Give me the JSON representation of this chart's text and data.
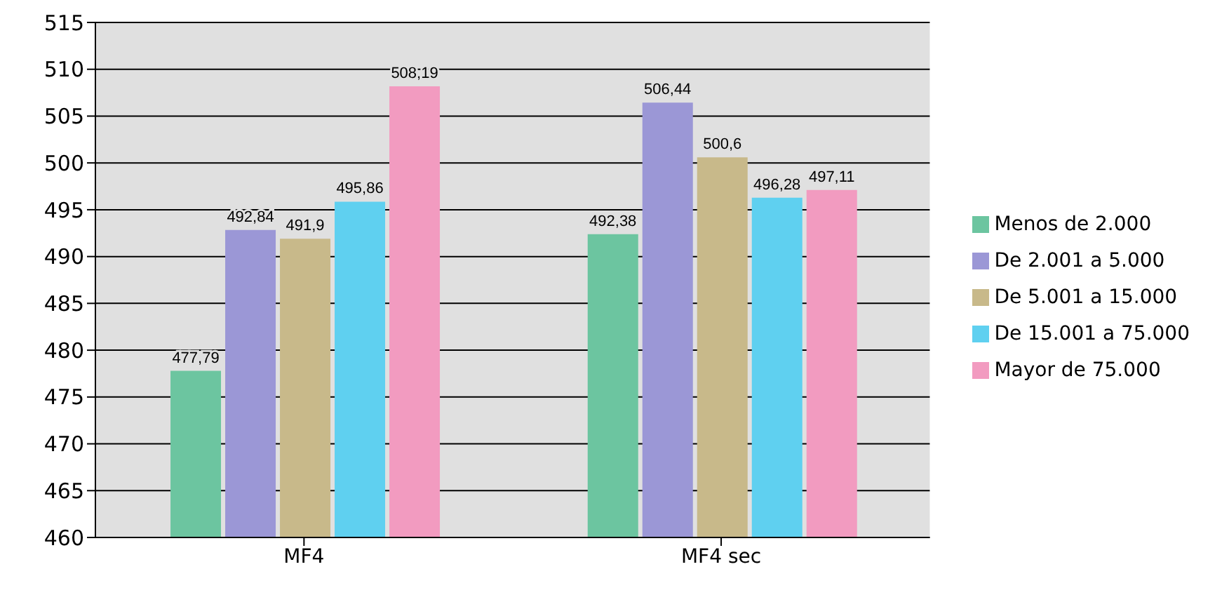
{
  "chart_data": {
    "type": "bar",
    "categories": [
      "MF4",
      "MF4  sec"
    ],
    "series": [
      {
        "name": "Menos de 2.000",
        "color": "#6cc5a0",
        "values": [
          477.79,
          492.38
        ],
        "value_labels": [
          "477,79",
          "492,38"
        ]
      },
      {
        "name": "De 2.001 a 5.000",
        "color": "#9b97d6",
        "values": [
          492.84,
          506.44
        ],
        "value_labels": [
          "492,84",
          "506,44"
        ]
      },
      {
        "name": "De 5.001 a 15.000",
        "color": "#c8b98a",
        "values": [
          491.9,
          500.6
        ],
        "value_labels": [
          "491,9",
          "500,6"
        ]
      },
      {
        "name": "De 15.001 a 75.000",
        "color": "#5fd0f0",
        "values": [
          495.86,
          496.28
        ],
        "value_labels": [
          "495,86",
          "496,28"
        ]
      },
      {
        "name": "Mayor de 75.000",
        "color": "#f29bc0",
        "values": [
          508.19,
          497.11
        ],
        "value_labels": [
          "508,19",
          "497,11"
        ]
      }
    ],
    "ylim": [
      460,
      515
    ],
    "yticks": [
      460,
      465,
      470,
      475,
      480,
      485,
      490,
      495,
      500,
      505,
      510,
      515
    ],
    "grid": "y",
    "legend": "right"
  }
}
